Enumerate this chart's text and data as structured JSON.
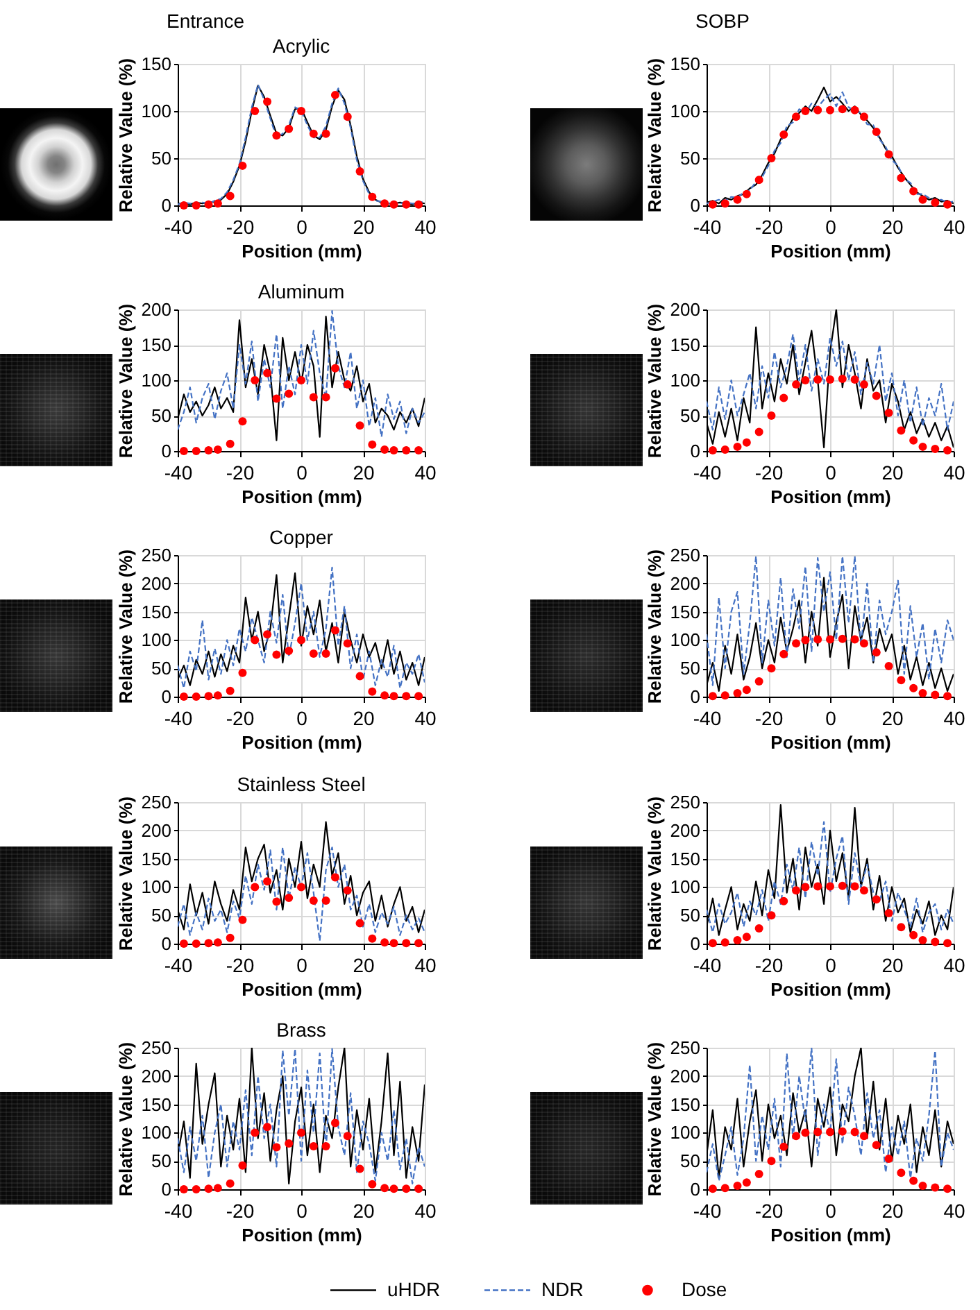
{
  "chart_data": [
    {
      "type": "line",
      "title": "Acrylic",
      "annotations": [
        "Entrance"
      ],
      "xlabel": "Position (mm)",
      "ylabel": "Relative Value (%)",
      "x": [
        -40,
        -38,
        -36,
        -34,
        -32,
        -30,
        -28,
        -26,
        -24,
        -22,
        -20,
        -18,
        -16,
        -14,
        -12,
        -10,
        -8,
        -6,
        -4,
        -2,
        0,
        2,
        4,
        6,
        8,
        10,
        12,
        14,
        16,
        18,
        20,
        22,
        24,
        26,
        28,
        30,
        32,
        34,
        36,
        38,
        40
      ],
      "xlim": [
        -40,
        40
      ],
      "xticks": [
        -40,
        -20,
        0,
        20,
        40
      ],
      "ylim": [
        0,
        150
      ],
      "yticks": [
        0,
        50,
        100,
        150
      ],
      "grid": true,
      "series": [
        {
          "type": "line",
          "color": "#000000",
          "line_style": "solid",
          "values": [
            2,
            2,
            1,
            3,
            2,
            3,
            4,
            6,
            12,
            25,
            42,
            68,
            100,
            127,
            115,
            95,
            76,
            74,
            82,
            102,
            103,
            88,
            74,
            70,
            80,
            105,
            122,
            112,
            85,
            52,
            28,
            14,
            6,
            3,
            2,
            2,
            3,
            2,
            1,
            3,
            2
          ]
        },
        {
          "type": "line",
          "color": "#4472c4",
          "line_style": "dashed",
          "values": [
            1,
            3,
            2,
            2,
            3,
            2,
            5,
            7,
            14,
            27,
            44,
            72,
            104,
            128,
            112,
            92,
            72,
            76,
            85,
            104,
            100,
            85,
            72,
            72,
            84,
            108,
            124,
            108,
            82,
            48,
            26,
            12,
            5,
            4,
            2,
            3,
            2,
            3,
            2,
            2,
            5
          ]
        },
        {
          "type": "scatter",
          "color": "#ff0000",
          "marker": "circle",
          "x": [
            -38,
            -34,
            -30,
            -27,
            -23,
            -19,
            -15,
            -11,
            -8,
            -4,
            0,
            4,
            8,
            11,
            15,
            19,
            23,
            27,
            30,
            34,
            38
          ],
          "values": [
            0,
            0,
            1,
            2,
            10,
            42,
            100,
            110,
            74,
            81,
            100,
            76,
            76,
            117,
            94,
            36,
            9,
            2,
            1,
            1,
            1
          ]
        }
      ]
    },
    {
      "type": "line",
      "annotations": [
        "SOBP"
      ],
      "xlabel": "Position (mm)",
      "ylabel": "Relative Value (%)",
      "x": [
        -40,
        -38,
        -36,
        -34,
        -32,
        -30,
        -28,
        -26,
        -24,
        -22,
        -20,
        -18,
        -16,
        -14,
        -12,
        -10,
        -8,
        -6,
        -4,
        -2,
        0,
        2,
        4,
        6,
        8,
        10,
        12,
        14,
        16,
        18,
        20,
        22,
        24,
        26,
        28,
        30,
        32,
        34,
        36,
        38,
        40
      ],
      "xlim": [
        -40,
        40
      ],
      "xticks": [
        -40,
        -20,
        0,
        20,
        40
      ],
      "ylim": [
        0,
        150
      ],
      "yticks": [
        0,
        50,
        100,
        150
      ],
      "grid": true,
      "series": [
        {
          "type": "line",
          "color": "#000000",
          "line_style": "solid",
          "values": [
            3,
            5,
            2,
            8,
            6,
            10,
            12,
            18,
            22,
            32,
            45,
            55,
            70,
            80,
            92,
            98,
            105,
            100,
            112,
            125,
            110,
            115,
            108,
            100,
            105,
            96,
            90,
            82,
            72,
            60,
            52,
            40,
            30,
            22,
            14,
            10,
            6,
            8,
            4,
            5,
            2
          ]
        },
        {
          "type": "line",
          "color": "#4472c4",
          "line_style": "dashed",
          "values": [
            2,
            4,
            6,
            5,
            9,
            8,
            14,
            16,
            25,
            30,
            42,
            58,
            66,
            84,
            88,
            102,
            98,
            108,
            104,
            112,
            118,
            105,
            120,
            104,
            100,
            98,
            86,
            85,
            70,
            62,
            48,
            42,
            28,
            24,
            12,
            12,
            8,
            5,
            6,
            3,
            4
          ]
        },
        {
          "type": "scatter",
          "color": "#ff0000",
          "marker": "circle",
          "x": [
            -38,
            -34,
            -30,
            -27,
            -23,
            -19,
            -15,
            -11,
            -8,
            -4,
            0,
            4,
            8,
            11,
            15,
            19,
            23,
            27,
            30,
            34,
            38
          ],
          "values": [
            1,
            2,
            6,
            12,
            27,
            50,
            75,
            94,
            100,
            101,
            101,
            102,
            101,
            94,
            78,
            54,
            29,
            15,
            6,
            3,
            1
          ]
        }
      ]
    },
    {
      "type": "line",
      "title": "Aluminum",
      "xlabel": "Position (mm)",
      "ylabel": "Relative Value (%)",
      "x": [
        -40,
        -38,
        -36,
        -34,
        -32,
        -30,
        -28,
        -26,
        -24,
        -22,
        -20,
        -18,
        -16,
        -14,
        -12,
        -10,
        -8,
        -6,
        -4,
        -2,
        0,
        2,
        4,
        6,
        8,
        10,
        12,
        14,
        16,
        18,
        20,
        22,
        24,
        26,
        28,
        30,
        32,
        34,
        36,
        38,
        40
      ],
      "xlim": [
        -40,
        40
      ],
      "xticks": [
        -40,
        -20,
        0,
        20,
        40
      ],
      "ylim": [
        0,
        200
      ],
      "yticks": [
        0,
        50,
        100,
        150,
        200
      ],
      "grid": true,
      "series": [
        {
          "type": "line",
          "color": "#000000",
          "line_style": "solid",
          "values": [
            45,
            80,
            55,
            70,
            50,
            65,
            90,
            60,
            75,
            55,
            185,
            90,
            130,
            80,
            150,
            110,
            15,
            160,
            100,
            140,
            95,
            150,
            120,
            20,
            190,
            90,
            140,
            100,
            85,
            120,
            70,
            95,
            40,
            60,
            50,
            30,
            55,
            40,
            60,
            35,
            75
          ]
        },
        {
          "type": "line",
          "color": "#4472c4",
          "line_style": "dashed",
          "values": [
            30,
            55,
            90,
            40,
            75,
            95,
            45,
            85,
            110,
            60,
            150,
            95,
            155,
            70,
            130,
            90,
            165,
            60,
            120,
            80,
            150,
            95,
            170,
            110,
            75,
            198,
            120,
            90,
            140,
            60,
            100,
            35,
            75,
            20,
            80,
            45,
            70,
            25,
            60,
            40,
            55
          ]
        },
        {
          "type": "scatter",
          "color": "#ff0000",
          "marker": "circle",
          "x": [
            -38,
            -34,
            -30,
            -27,
            -23,
            -19,
            -15,
            -11,
            -8,
            -4,
            0,
            4,
            8,
            11,
            15,
            19,
            23,
            27,
            30,
            34,
            38
          ],
          "values": [
            0,
            0,
            1,
            2,
            10,
            42,
            100,
            110,
            74,
            81,
            100,
            76,
            76,
            117,
            94,
            36,
            9,
            2,
            1,
            1,
            1
          ]
        }
      ]
    },
    {
      "type": "line",
      "xlabel": "Position (mm)",
      "ylabel": "Relative Value (%)",
      "x": [
        -40,
        -38,
        -36,
        -34,
        -32,
        -30,
        -28,
        -26,
        -24,
        -22,
        -20,
        -18,
        -16,
        -14,
        -12,
        -10,
        -8,
        -6,
        -4,
        -2,
        0,
        2,
        4,
        6,
        8,
        10,
        12,
        14,
        16,
        18,
        20,
        22,
        24,
        26,
        28,
        30,
        32,
        34,
        36,
        38,
        40
      ],
      "xlim": [
        -40,
        40
      ],
      "xticks": [
        -40,
        -20,
        0,
        20,
        40
      ],
      "ylim": [
        0,
        200
      ],
      "yticks": [
        0,
        50,
        100,
        150,
        200
      ],
      "grid": true,
      "series": [
        {
          "type": "line",
          "color": "#000000",
          "line_style": "solid",
          "values": [
            40,
            10,
            55,
            20,
            60,
            15,
            75,
            40,
            175,
            60,
            110,
            70,
            130,
            95,
            150,
            80,
            125,
            170,
            100,
            5,
            140,
            200,
            90,
            150,
            110,
            60,
            130,
            85,
            100,
            40,
            95,
            70,
            30,
            55,
            25,
            45,
            20,
            40,
            15,
            35,
            5
          ]
        },
        {
          "type": "line",
          "color": "#4472c4",
          "line_style": "dashed",
          "values": [
            70,
            30,
            90,
            45,
            100,
            50,
            80,
            110,
            60,
            120,
            75,
            140,
            90,
            120,
            165,
            100,
            150,
            85,
            130,
            95,
            160,
            120,
            155,
            100,
            140,
            80,
            125,
            95,
            150,
            70,
            110,
            50,
            100,
            40,
            90,
            35,
            75,
            50,
            95,
            30,
            70
          ]
        },
        {
          "type": "scatter",
          "color": "#ff0000",
          "marker": "circle",
          "x": [
            -38,
            -34,
            -30,
            -27,
            -23,
            -19,
            -15,
            -11,
            -8,
            -4,
            0,
            4,
            8,
            11,
            15,
            19,
            23,
            27,
            30,
            34,
            38
          ],
          "values": [
            1,
            2,
            6,
            12,
            27,
            50,
            75,
            94,
            100,
            101,
            101,
            102,
            101,
            94,
            78,
            54,
            29,
            15,
            6,
            3,
            1
          ]
        }
      ]
    },
    {
      "type": "line",
      "title": "Copper",
      "xlabel": "Position (mm)",
      "ylabel": "Relative Value (%)",
      "x": [
        -40,
        -38,
        -36,
        -34,
        -32,
        -30,
        -28,
        -26,
        -24,
        -22,
        -20,
        -18,
        -16,
        -14,
        -12,
        -10,
        -8,
        -6,
        -4,
        -2,
        0,
        2,
        4,
        6,
        8,
        10,
        12,
        14,
        16,
        18,
        20,
        22,
        24,
        26,
        28,
        30,
        32,
        34,
        36,
        38,
        40
      ],
      "xlim": [
        -40,
        40
      ],
      "xticks": [
        -40,
        -20,
        0,
        20,
        40
      ],
      "ylim": [
        0,
        250
      ],
      "yticks": [
        0,
        50,
        100,
        150,
        200,
        250
      ],
      "grid": true,
      "series": [
        {
          "type": "line",
          "color": "#000000",
          "line_style": "solid",
          "values": [
            30,
            55,
            20,
            65,
            40,
            80,
            35,
            75,
            45,
            90,
            60,
            175,
            100,
            150,
            80,
            120,
            215,
            60,
            140,
            218,
            90,
            160,
            110,
            170,
            80,
            130,
            60,
            150,
            100,
            60,
            110,
            70,
            95,
            50,
            100,
            40,
            80,
            30,
            60,
            20,
            70
          ]
        },
        {
          "type": "line",
          "color": "#4472c4",
          "line_style": "dashed",
          "values": [
            55,
            15,
            80,
            45,
            135,
            30,
            85,
            40,
            100,
            55,
            120,
            80,
            140,
            100,
            60,
            150,
            95,
            180,
            70,
            130,
            200,
            100,
            150,
            70,
            120,
            228,
            90,
            160,
            50,
            110,
            30,
            80,
            20,
            65,
            35,
            90,
            15,
            60,
            40,
            75,
            25
          ]
        },
        {
          "type": "scatter",
          "color": "#ff0000",
          "marker": "circle",
          "x": [
            -38,
            -34,
            -30,
            -27,
            -23,
            -19,
            -15,
            -11,
            -8,
            -4,
            0,
            4,
            8,
            11,
            15,
            19,
            23,
            27,
            30,
            34,
            38
          ],
          "values": [
            0,
            0,
            1,
            2,
            10,
            42,
            100,
            110,
            74,
            81,
            100,
            76,
            76,
            117,
            94,
            36,
            9,
            2,
            1,
            1,
            1
          ]
        }
      ]
    },
    {
      "type": "line",
      "xlabel": "Position (mm)",
      "ylabel": "Relative Value (%)",
      "x": [
        -40,
        -38,
        -36,
        -34,
        -32,
        -30,
        -28,
        -26,
        -24,
        -22,
        -20,
        -18,
        -16,
        -14,
        -12,
        -10,
        -8,
        -6,
        -4,
        -2,
        0,
        2,
        4,
        6,
        8,
        10,
        12,
        14,
        16,
        18,
        20,
        22,
        24,
        26,
        28,
        30,
        32,
        34,
        36,
        38,
        40
      ],
      "xlim": [
        -40,
        40
      ],
      "xticks": [
        -40,
        -20,
        0,
        20,
        40
      ],
      "ylim": [
        0,
        250
      ],
      "yticks": [
        0,
        50,
        100,
        150,
        200,
        250
      ],
      "grid": true,
      "series": [
        {
          "type": "line",
          "color": "#000000",
          "line_style": "solid",
          "values": [
            20,
            60,
            10,
            90,
            40,
            110,
            30,
            70,
            130,
            50,
            100,
            60,
            140,
            80,
            120,
            170,
            60,
            150,
            90,
            210,
            70,
            130,
            180,
            50,
            160,
            100,
            140,
            60,
            120,
            80,
            110,
            40,
            90,
            30,
            70,
            20,
            60,
            15,
            50,
            10,
            40
          ]
        },
        {
          "type": "line",
          "color": "#4472c4",
          "line_style": "dashed",
          "values": [
            110,
            20,
            175,
            50,
            150,
            185,
            40,
            130,
            248,
            60,
            170,
            90,
            210,
            70,
            190,
            120,
            230,
            80,
            245,
            150,
            220,
            100,
            248,
            130,
            248,
            90,
            200,
            60,
            170,
            110,
            150,
            205,
            40,
            160,
            70,
            130,
            30,
            120,
            60,
            135,
            100
          ]
        },
        {
          "type": "scatter",
          "color": "#ff0000",
          "marker": "circle",
          "x": [
            -38,
            -34,
            -30,
            -27,
            -23,
            -19,
            -15,
            -11,
            -8,
            -4,
            0,
            4,
            8,
            11,
            15,
            19,
            23,
            27,
            30,
            34,
            38
          ],
          "values": [
            1,
            2,
            6,
            12,
            27,
            50,
            75,
            94,
            100,
            101,
            101,
            102,
            101,
            94,
            78,
            54,
            29,
            15,
            6,
            3,
            1
          ]
        }
      ]
    },
    {
      "type": "line",
      "title": "Stainless Steel",
      "xlabel": "Position (mm)",
      "ylabel": "Relative Value (%)",
      "x": [
        -40,
        -38,
        -36,
        -34,
        -32,
        -30,
        -28,
        -26,
        -24,
        -22,
        -20,
        -18,
        -16,
        -14,
        -12,
        -10,
        -8,
        -6,
        -4,
        -2,
        0,
        2,
        4,
        6,
        8,
        10,
        12,
        14,
        16,
        18,
        20,
        22,
        24,
        26,
        28,
        30,
        32,
        34,
        36,
        38,
        40
      ],
      "xlim": [
        -40,
        40
      ],
      "xticks": [
        -40,
        -20,
        0,
        20,
        40
      ],
      "ylim": [
        0,
        250
      ],
      "yticks": [
        0,
        50,
        100,
        150,
        200,
        250
      ],
      "grid": true,
      "series": [
        {
          "type": "line",
          "color": "#000000",
          "line_style": "solid",
          "values": [
            60,
            25,
            105,
            50,
            90,
            35,
            110,
            70,
            40,
            95,
            60,
            170,
            110,
            150,
            175,
            90,
            130,
            60,
            150,
            100,
            180,
            80,
            140,
            100,
            215,
            120,
            160,
            70,
            120,
            50,
            90,
            110,
            40,
            85,
            30,
            70,
            100,
            40,
            65,
            20,
            60
          ]
        },
        {
          "type": "line",
          "color": "#4472c4",
          "line_style": "dashed",
          "values": [
            30,
            70,
            15,
            55,
            25,
            80,
            40,
            60,
            20,
            75,
            45,
            120,
            70,
            140,
            95,
            165,
            60,
            170,
            80,
            135,
            100,
            160,
            90,
            5,
            130,
            170,
            100,
            140,
            60,
            85,
            30,
            70,
            20,
            55,
            35,
            65,
            15,
            50,
            25,
            45,
            20
          ]
        },
        {
          "type": "scatter",
          "color": "#ff0000",
          "marker": "circle",
          "x": [
            -38,
            -34,
            -30,
            -27,
            -23,
            -19,
            -15,
            -11,
            -8,
            -4,
            0,
            4,
            8,
            11,
            15,
            19,
            23,
            27,
            30,
            34,
            38
          ],
          "values": [
            0,
            0,
            1,
            2,
            10,
            42,
            100,
            110,
            74,
            81,
            100,
            76,
            76,
            117,
            94,
            36,
            9,
            2,
            1,
            1,
            1
          ]
        }
      ]
    },
    {
      "type": "line",
      "xlabel": "Position (mm)",
      "ylabel": "Relative Value (%)",
      "x": [
        -40,
        -38,
        -36,
        -34,
        -32,
        -30,
        -28,
        -26,
        -24,
        -22,
        -20,
        -18,
        -16,
        -14,
        -12,
        -10,
        -8,
        -6,
        -4,
        -2,
        0,
        2,
        4,
        6,
        8,
        10,
        12,
        14,
        16,
        18,
        20,
        22,
        24,
        26,
        28,
        30,
        32,
        34,
        36,
        38,
        40
      ],
      "xlim": [
        -40,
        40
      ],
      "xticks": [
        -40,
        -20,
        0,
        20,
        40
      ],
      "ylim": [
        0,
        250
      ],
      "yticks": [
        0,
        50,
        100,
        150,
        200,
        250
      ],
      "grid": true,
      "series": [
        {
          "type": "line",
          "color": "#000000",
          "line_style": "solid",
          "values": [
            30,
            80,
            15,
            60,
            100,
            25,
            70,
            40,
            110,
            50,
            130,
            80,
            245,
            90,
            150,
            60,
            170,
            100,
            140,
            70,
            200,
            110,
            160,
            80,
            240,
            100,
            150,
            60,
            120,
            40,
            100,
            55,
            80,
            20,
            60,
            35,
            75,
            15,
            50,
            25,
            100
          ]
        },
        {
          "type": "line",
          "color": "#4472c4",
          "line_style": "dashed",
          "values": [
            60,
            20,
            70,
            35,
            55,
            90,
            30,
            75,
            50,
            95,
            40,
            110,
            70,
            140,
            95,
            170,
            80,
            180,
            120,
            215,
            90,
            150,
            190,
            70,
            160,
            100,
            140,
            90,
            75,
            110,
            40,
            90,
            60,
            30,
            80,
            20,
            55,
            70,
            25,
            60,
            35
          ]
        },
        {
          "type": "scatter",
          "color": "#ff0000",
          "marker": "circle",
          "x": [
            -38,
            -34,
            -30,
            -27,
            -23,
            -19,
            -15,
            -11,
            -8,
            -4,
            0,
            4,
            8,
            11,
            15,
            19,
            23,
            27,
            30,
            34,
            38
          ],
          "values": [
            1,
            2,
            6,
            12,
            27,
            50,
            75,
            94,
            100,
            101,
            101,
            102,
            101,
            94,
            78,
            54,
            29,
            15,
            6,
            3,
            1
          ]
        }
      ]
    },
    {
      "type": "line",
      "title": "Brass",
      "xlabel": "Position (mm)",
      "ylabel": "Relative Value (%)",
      "x": [
        -40,
        -38,
        -36,
        -34,
        -32,
        -30,
        -28,
        -26,
        -24,
        -22,
        -20,
        -18,
        -16,
        -14,
        -12,
        -10,
        -8,
        -6,
        -4,
        -2,
        0,
        2,
        4,
        6,
        8,
        10,
        12,
        14,
        16,
        18,
        20,
        22,
        24,
        26,
        28,
        30,
        32,
        34,
        36,
        38,
        40
      ],
      "xlim": [
        -40,
        40
      ],
      "xticks": [
        -40,
        -20,
        0,
        20,
        40
      ],
      "ylim": [
        0,
        250
      ],
      "yticks": [
        0,
        50,
        100,
        150,
        200,
        250
      ],
      "grid": true,
      "series": [
        {
          "type": "line",
          "color": "#000000",
          "line_style": "solid",
          "values": [
            60,
            120,
            20,
            222,
            80,
            150,
            205,
            40,
            130,
            70,
            160,
            30,
            250,
            90,
            170,
            50,
            140,
            200,
            10,
            120,
            180,
            60,
            150,
            30,
            130,
            90,
            180,
            250,
            40,
            140,
            70,
            160,
            30,
            120,
            240,
            60,
            190,
            20,
            110,
            50,
            185
          ]
        },
        {
          "type": "line",
          "color": "#4472c4",
          "line_style": "dashed",
          "values": [
            90,
            30,
            110,
            50,
            130,
            20,
            100,
            150,
            40,
            120,
            70,
            175,
            60,
            200,
            90,
            150,
            40,
            245,
            130,
            248,
            50,
            210,
            100,
            240,
            70,
            248,
            110,
            60,
            170,
            30,
            120,
            80,
            15,
            100,
            50,
            140,
            35,
            90,
            10,
            75,
            40
          ]
        },
        {
          "type": "scatter",
          "color": "#ff0000",
          "marker": "circle",
          "x": [
            -38,
            -34,
            -30,
            -27,
            -23,
            -19,
            -15,
            -11,
            -8,
            -4,
            0,
            4,
            8,
            11,
            15,
            19,
            23,
            27,
            30,
            34,
            38
          ],
          "values": [
            0,
            0,
            1,
            2,
            10,
            42,
            100,
            110,
            74,
            81,
            100,
            76,
            76,
            117,
            94,
            36,
            9,
            2,
            1,
            1,
            1
          ]
        }
      ]
    },
    {
      "type": "line",
      "xlabel": "Position (mm)",
      "ylabel": "Relative Value (%)",
      "x": [
        -40,
        -38,
        -36,
        -34,
        -32,
        -30,
        -28,
        -26,
        -24,
        -22,
        -20,
        -18,
        -16,
        -14,
        -12,
        -10,
        -8,
        -6,
        -4,
        -2,
        0,
        2,
        4,
        6,
        8,
        10,
        12,
        14,
        16,
        18,
        20,
        22,
        24,
        26,
        28,
        30,
        32,
        34,
        36,
        38,
        40
      ],
      "xlim": [
        -40,
        40
      ],
      "xticks": [
        -40,
        -20,
        0,
        20,
        40
      ],
      "ylim": [
        0,
        250
      ],
      "yticks": [
        0,
        50,
        100,
        150,
        200,
        250
      ],
      "grid": true,
      "legend": "bottom",
      "series": [
        {
          "name": "uHDR",
          "type": "line",
          "color": "#000000",
          "line_style": "solid",
          "values": [
            60,
            140,
            20,
            110,
            70,
            160,
            40,
            120,
            175,
            50,
            150,
            90,
            130,
            60,
            170,
            100,
            140,
            40,
            160,
            110,
            180,
            60,
            150,
            120,
            200,
            250,
            90,
            190,
            70,
            160,
            50,
            130,
            80,
            150,
            30,
            110,
            60,
            140,
            40,
            120,
            80
          ]
        },
        {
          "name": "NDR",
          "type": "line",
          "color": "#4472c4",
          "line_style": "dashed",
          "values": [
            30,
            80,
            15,
            60,
            110,
            25,
            90,
            220,
            50,
            130,
            70,
            160,
            40,
            240,
            90,
            200,
            120,
            250,
            60,
            150,
            100,
            230,
            80,
            180,
            130,
            60,
            170,
            90,
            140,
            30,
            110,
            60,
            120,
            20,
            90,
            50,
            130,
            245,
            40,
            100,
            70
          ]
        },
        {
          "name": "Dose",
          "type": "scatter",
          "color": "#ff0000",
          "marker": "circle",
          "x": [
            -38,
            -34,
            -30,
            -27,
            -23,
            -19,
            -15,
            -11,
            -8,
            -4,
            0,
            4,
            8,
            11,
            15,
            19,
            23,
            27,
            30,
            34,
            38
          ],
          "values": [
            1,
            2,
            6,
            12,
            27,
            50,
            75,
            94,
            100,
            101,
            101,
            102,
            101,
            94,
            78,
            54,
            29,
            15,
            6,
            3,
            1
          ]
        }
      ]
    }
  ]
}
